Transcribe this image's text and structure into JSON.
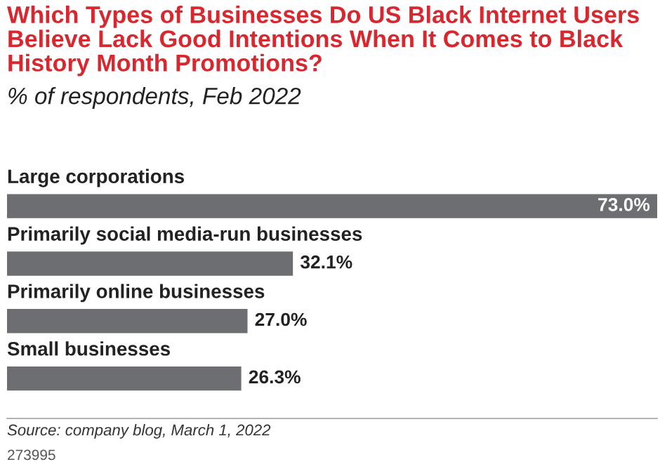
{
  "chart_data": {
    "type": "bar",
    "orientation": "horizontal",
    "title": "Which Types of Businesses Do US Black Internet Users Believe Lack Good Intentions When It Comes to Black History Month Promotions?",
    "subtitle": "% of respondents, Feb 2022",
    "categories": [
      "Large corporations",
      "Primarily social media-run businesses",
      "Primarily online businesses",
      "Small businesses"
    ],
    "values": [
      73.0,
      32.1,
      27.0,
      26.3
    ],
    "value_labels": [
      "73.0%",
      "32.1%",
      "27.0%",
      "26.3%"
    ],
    "color": "#6d6e71",
    "annotations": [
      "Source: company blog, March 1, 2022",
      "273995"
    ]
  }
}
